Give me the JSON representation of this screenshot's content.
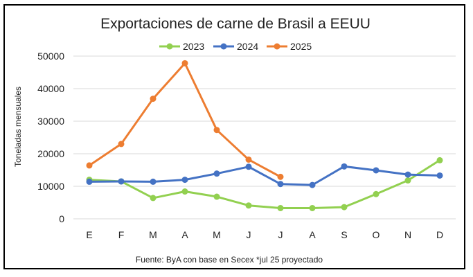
{
  "chart_data": {
    "type": "line",
    "title": "Exportaciones de carne de Brasil a EEUU",
    "ylabel": "Toneladas mensuales",
    "xlabel": "",
    "categories": [
      "E",
      "F",
      "M",
      "A",
      "M",
      "J",
      "J",
      "A",
      "S",
      "O",
      "N",
      "D"
    ],
    "y_ticks": [
      "0",
      "10000",
      "20000",
      "30000",
      "40000",
      "50000"
    ],
    "ylim": [
      0,
      50000
    ],
    "grid": "horizontal",
    "legend_position": "top",
    "series": [
      {
        "name": "2023",
        "color": "#92d050",
        "values": [
          12000,
          11500,
          6400,
          8400,
          6800,
          4100,
          3300,
          3300,
          3600,
          7600,
          11800,
          18000
        ]
      },
      {
        "name": "2024",
        "color": "#4472c4",
        "values": [
          11400,
          11500,
          11400,
          12000,
          13900,
          16000,
          10700,
          10400,
          16100,
          14900,
          13600,
          13300
        ]
      },
      {
        "name": "2025",
        "color": "#ed7d31",
        "values": [
          16400,
          23000,
          36900,
          47800,
          27300,
          18200,
          12900,
          null,
          null,
          null,
          null,
          null
        ]
      }
    ],
    "source": "Fuente: ByA con base en Secex *jul 25 proyectado"
  }
}
